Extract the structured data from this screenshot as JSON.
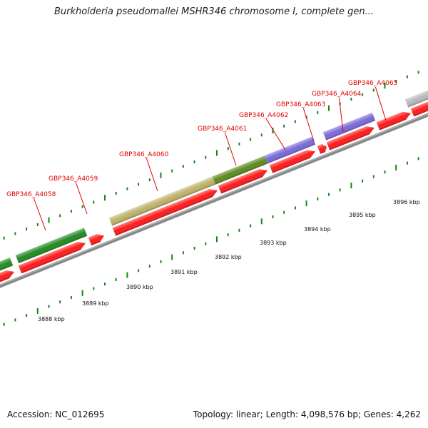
{
  "title": "Burkholderia pseudomallei MSHR346 chromosome I, complete gen...",
  "footer": {
    "accession": "Accession: NC_012695",
    "summary": "Topology: linear; Length: 4,098,576 bp; Genes: 4,262"
  },
  "colors": {
    "cds": "#ff1a1a",
    "backbone": "#888888",
    "label": "#e00000",
    "tick": "#118811"
  },
  "genes": [
    {
      "label": "GBP346_A4058"
    },
    {
      "label": "GBP346_A4059"
    },
    {
      "label": "GBP346_A4060"
    },
    {
      "label": "GBP346_A4061"
    },
    {
      "label": "GBP346_A4062"
    },
    {
      "label": "GBP346_A4063"
    },
    {
      "label": "GBP346_A4064"
    },
    {
      "label": "GBP346_A4065"
    }
  ],
  "scale": [
    {
      "label": "3888 kbp"
    },
    {
      "label": "3889 kbp"
    },
    {
      "label": "3890 kbp"
    },
    {
      "label": "3891 kbp"
    },
    {
      "label": "3892 kbp"
    },
    {
      "label": "3893 kbp"
    },
    {
      "label": "3894 kbp"
    },
    {
      "label": "3895 kbp"
    },
    {
      "label": "3896 kbp"
    }
  ]
}
